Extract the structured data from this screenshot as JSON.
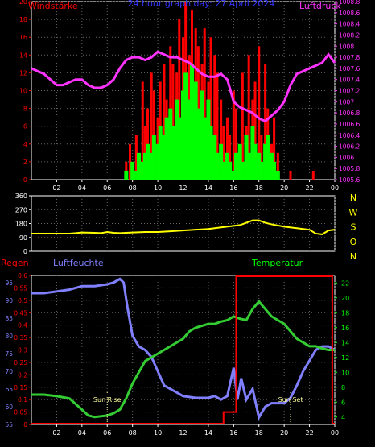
{
  "chart_data": [
    {
      "type": "line",
      "title": "24 hour graph day: 27 April 2024",
      "ylabel_left": "Windstärke",
      "ylabel_right": "Luftdruck",
      "x_ticks": [
        "02",
        "04",
        "06",
        "08",
        "10",
        "12",
        "14",
        "16",
        "18",
        "20",
        "22",
        "00"
      ],
      "xlim": [
        0,
        24
      ],
      "left_axis": {
        "ylim": [
          0,
          20
        ],
        "ticks": [
          "0",
          "2",
          "4",
          "6",
          "8",
          "10",
          "12",
          "14",
          "16",
          "18",
          "20"
        ]
      },
      "right_axis": {
        "ylim": [
          1005.6,
          1008.8
        ],
        "ticks": [
          "1005.6",
          "1005.8",
          "1006",
          "1006.2",
          "1006.4",
          "1006.6",
          "1006.8",
          "1007",
          "1007.2",
          "1007.4",
          "1007.6",
          "1007.8",
          "1008",
          "1008.2",
          "1008.4",
          "1008.6",
          "1008.8"
        ]
      },
      "colors": {
        "gust": "#ff0000",
        "wind": "#00ff00",
        "pressure": "#ff33ff",
        "grid": "#666666"
      },
      "series": [
        {
          "key": "gust",
          "type": "bar",
          "x": [
            0,
            6,
            7.3,
            7.5,
            7.8,
            8.0,
            8.3,
            8.5,
            8.8,
            9.0,
            9.2,
            9.5,
            9.7,
            10.0,
            10.2,
            10.5,
            10.7,
            11.0,
            11.2,
            11.5,
            11.7,
            12.0,
            12.2,
            12.5,
            12.7,
            13.0,
            13.2,
            13.5,
            13.7,
            14.0,
            14.2,
            14.5,
            14.7,
            15.0,
            15.2,
            15.5,
            15.7,
            16.0,
            16.2,
            16.5,
            16.7,
            17.0,
            17.2,
            17.5,
            17.7,
            18.0,
            18.2,
            18.5,
            18.7,
            19.0,
            19.2,
            19.5,
            19.8,
            20.5,
            21.0,
            22.3,
            22.8,
            23.2
          ],
          "values": [
            0,
            0,
            0,
            2,
            4,
            1,
            5,
            3,
            11,
            6,
            8,
            12,
            10,
            7,
            11,
            13,
            9,
            15,
            13,
            12,
            18,
            16,
            20,
            14,
            19,
            17,
            15,
            13,
            17,
            11,
            16,
            14,
            12,
            9,
            6,
            7,
            5,
            10,
            8,
            3,
            12,
            6,
            14,
            9,
            11,
            15,
            5,
            13,
            8,
            4,
            7,
            3,
            0,
            1,
            0,
            1,
            0,
            0
          ]
        },
        {
          "key": "wind",
          "type": "bar",
          "x": [
            7.5,
            8.0,
            8.3,
            8.5,
            8.8,
            9.0,
            9.2,
            9.5,
            9.7,
            10.0,
            10.2,
            10.5,
            10.7,
            11.0,
            11.2,
            11.5,
            11.7,
            12.0,
            12.2,
            12.5,
            12.7,
            13.0,
            13.2,
            13.5,
            13.7,
            14.0,
            14.2,
            14.5,
            14.7,
            15.0,
            15.2,
            15.5,
            15.7,
            16.0,
            16.2,
            16.5,
            16.7,
            17.0,
            17.2,
            17.5,
            17.7,
            18.0,
            18.2,
            18.5,
            18.7,
            19.0,
            19.2,
            19.5
          ],
          "values": [
            1,
            2,
            1,
            3,
            2,
            3,
            4,
            3,
            5,
            4,
            6,
            5,
            7,
            8,
            6,
            9,
            7,
            10,
            12,
            9,
            13,
            11,
            8,
            10,
            7,
            9,
            6,
            5,
            3,
            4,
            2,
            3,
            2,
            1,
            3,
            4,
            2,
            5,
            3,
            6,
            4,
            3,
            2,
            4,
            5,
            3,
            2,
            1
          ]
        },
        {
          "key": "pressure",
          "type": "line",
          "x": [
            0,
            0.5,
            1,
            1.5,
            2,
            2.5,
            3,
            3.5,
            4,
            4.5,
            5,
            5.5,
            6,
            6.5,
            7,
            7.5,
            8,
            8.5,
            9,
            9.5,
            10,
            10.5,
            11,
            11.5,
            12,
            12.5,
            13,
            13.5,
            14,
            14.5,
            15,
            15.5,
            16,
            16.5,
            17,
            17.5,
            18,
            18.5,
            19,
            19.5,
            20,
            20.5,
            21,
            21.5,
            22,
            22.5,
            23,
            23.5,
            24
          ],
          "values": [
            1007.6,
            1007.55,
            1007.5,
            1007.4,
            1007.3,
            1007.3,
            1007.35,
            1007.4,
            1007.4,
            1007.3,
            1007.25,
            1007.25,
            1007.3,
            1007.4,
            1007.6,
            1007.75,
            1007.8,
            1007.8,
            1007.75,
            1007.8,
            1007.9,
            1007.85,
            1007.8,
            1007.8,
            1007.75,
            1007.7,
            1007.6,
            1007.5,
            1007.45,
            1007.45,
            1007.5,
            1007.4,
            1007.0,
            1006.9,
            1006.85,
            1006.8,
            1006.7,
            1006.65,
            1006.75,
            1006.85,
            1007.0,
            1007.3,
            1007.5,
            1007.55,
            1007.6,
            1007.65,
            1007.7,
            1007.85,
            1007.7
          ]
        }
      ]
    },
    {
      "type": "line",
      "ylabel_right": [
        "N",
        "W",
        "S",
        "O",
        "N"
      ],
      "x_ticks": [
        "02",
        "04",
        "06",
        "08",
        "10",
        "12",
        "14",
        "16",
        "18",
        "20",
        "22",
        "00"
      ],
      "xlim": [
        0,
        24
      ],
      "left_axis": {
        "ylim": [
          0,
          360
        ],
        "ticks": [
          "0",
          "90",
          "180",
          "270",
          "360"
        ]
      },
      "colors": {
        "direction": "#ffff00",
        "grid": "#666666"
      },
      "series": [
        {
          "key": "direction",
          "type": "line",
          "x": [
            0,
            1,
            2,
            3,
            3.5,
            4,
            5,
            5.5,
            6,
            6.5,
            7,
            8,
            9,
            10,
            11,
            12,
            13,
            14,
            15,
            16,
            16.5,
            17,
            17.5,
            18,
            18.5,
            19,
            20,
            21,
            22,
            22.5,
            23,
            23.5,
            24
          ],
          "values": [
            115,
            115,
            115,
            115,
            118,
            122,
            120,
            118,
            125,
            120,
            118,
            122,
            125,
            125,
            130,
            135,
            140,
            145,
            155,
            165,
            170,
            185,
            200,
            200,
            185,
            175,
            160,
            150,
            140,
            115,
            110,
            135,
            140
          ]
        }
      ]
    },
    {
      "type": "line",
      "ylabel_rain": "Regen",
      "ylabel_humidity": "Luftfeuchte",
      "ylabel_temp": "Temperatur",
      "x_ticks": [
        "02",
        "04",
        "06",
        "08",
        "10",
        "12",
        "14",
        "16",
        "18",
        "20",
        "22",
        "00"
      ],
      "xlim": [
        0,
        24
      ],
      "rain_axis": {
        "ylim": [
          0,
          0.6
        ],
        "ticks": [
          "0",
          "0.05",
          "0.1",
          "0.15",
          "0.2",
          "0.25",
          "0.3",
          "0.35",
          "0.4",
          "0.45",
          "0.5",
          "0.55",
          "0.6"
        ]
      },
      "humidity_axis": {
        "ylim": [
          55,
          97
        ],
        "ticks": [
          "55",
          "60",
          "65",
          "70",
          "75",
          "80",
          "85",
          "90",
          "95"
        ]
      },
      "temp_axis": {
        "ylim": [
          3,
          23
        ],
        "ticks": [
          "4",
          "6",
          "8",
          "10",
          "12",
          "14",
          "16",
          "18",
          "20",
          "22"
        ]
      },
      "colors": {
        "rain": "#ff0000",
        "humidity": "#8080ff",
        "temperature": "#33cc33",
        "grid": "#666666",
        "annotation": "#ffff99"
      },
      "annotations": [
        {
          "label": "Sun Rise",
          "x": 6.0
        },
        {
          "label": "Sun Set",
          "x": 20.5
        }
      ],
      "series": [
        {
          "key": "rain",
          "type": "step",
          "x": [
            0,
            15.2,
            15.2,
            16.2,
            16.2,
            23.8,
            23.8,
            24
          ],
          "values": [
            0,
            0,
            0.05,
            0.05,
            0.6,
            0.6,
            0,
            0
          ]
        },
        {
          "key": "humidity",
          "type": "line",
          "x": [
            0,
            1,
            2,
            3,
            3.5,
            4,
            5,
            6,
            6.5,
            7,
            7.3,
            7.6,
            8,
            8.5,
            9,
            9.5,
            10,
            10.5,
            11,
            11.5,
            12,
            13,
            14,
            14.5,
            15,
            15.5,
            16,
            16.3,
            16.6,
            17,
            17.5,
            18,
            18.5,
            19,
            19.5,
            20,
            20.5,
            21,
            21.5,
            22,
            22.5,
            23,
            23.5,
            24
          ],
          "values": [
            92,
            92,
            92.5,
            93,
            93.5,
            94,
            94,
            94.5,
            95,
            96,
            95,
            88,
            80,
            77,
            76,
            74,
            70,
            66,
            65,
            64,
            63,
            62.5,
            62.5,
            63,
            62,
            63,
            71,
            62,
            68,
            62,
            65,
            57,
            60,
            61,
            61,
            61,
            62.5,
            66,
            70,
            73,
            76,
            77,
            77,
            76
          ]
        },
        {
          "key": "temperature",
          "type": "line",
          "x": [
            0,
            1,
            2,
            3,
            4,
            4.5,
            5,
            6,
            6.5,
            7,
            7.5,
            8,
            8.5,
            9,
            10,
            11,
            12,
            12.5,
            13,
            14,
            14.5,
            15,
            15.5,
            16,
            16.5,
            17,
            17.5,
            18,
            18.5,
            19,
            19.5,
            20,
            20.5,
            21,
            22,
            22.5,
            23,
            23.5,
            24
          ],
          "values": [
            7,
            7,
            6.8,
            6.5,
            5,
            4.2,
            4,
            4.2,
            4.5,
            5,
            6.5,
            8.5,
            10,
            11.5,
            12.5,
            13.5,
            14.5,
            15.5,
            16,
            16.5,
            16.5,
            16.8,
            17,
            17.5,
            17.2,
            17,
            18.5,
            19.5,
            18.5,
            17.5,
            17,
            16.5,
            15.5,
            14.5,
            13.5,
            13.5,
            13.2,
            13,
            13
          ]
        }
      ]
    }
  ]
}
